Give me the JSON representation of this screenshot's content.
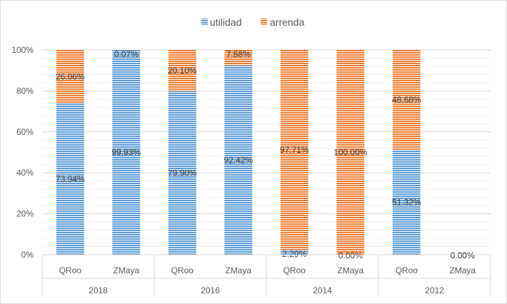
{
  "chart_data": {
    "type": "bar",
    "stacked": true,
    "percent": true,
    "groups": [
      "2018",
      "2016",
      "2014",
      "2012"
    ],
    "categories": [
      "QRoo",
      "ZMaya",
      "QRoo",
      "ZMaya",
      "QRoo",
      "ZMaya",
      "QRoo",
      "ZMaya"
    ],
    "series": [
      {
        "name": "utilidad",
        "color": "#5b9bd5",
        "values": [
          73.94,
          99.93,
          79.9,
          92.42,
          2.29,
          0.0,
          51.32,
          0.0
        ],
        "labels": [
          "73.94%",
          "99.93%",
          "79.90%",
          "92.42%",
          "2.29%",
          "0.00%",
          "51.32%",
          "0.00%"
        ]
      },
      {
        "name": "arrenda",
        "color": "#ed7d31",
        "values": [
          26.06,
          0.07,
          20.1,
          7.58,
          97.71,
          100.0,
          48.68,
          0.0
        ],
        "labels": [
          "26.06%",
          "0.07%",
          "20.10%",
          "7.58%",
          "97.71%",
          "100.00%",
          "48.68%",
          "0.00%"
        ]
      }
    ],
    "yticks": [
      "0%",
      "20%",
      "40%",
      "60%",
      "80%",
      "100%"
    ],
    "ylim": [
      0,
      100
    ],
    "grid": true,
    "legend": "top-center"
  }
}
